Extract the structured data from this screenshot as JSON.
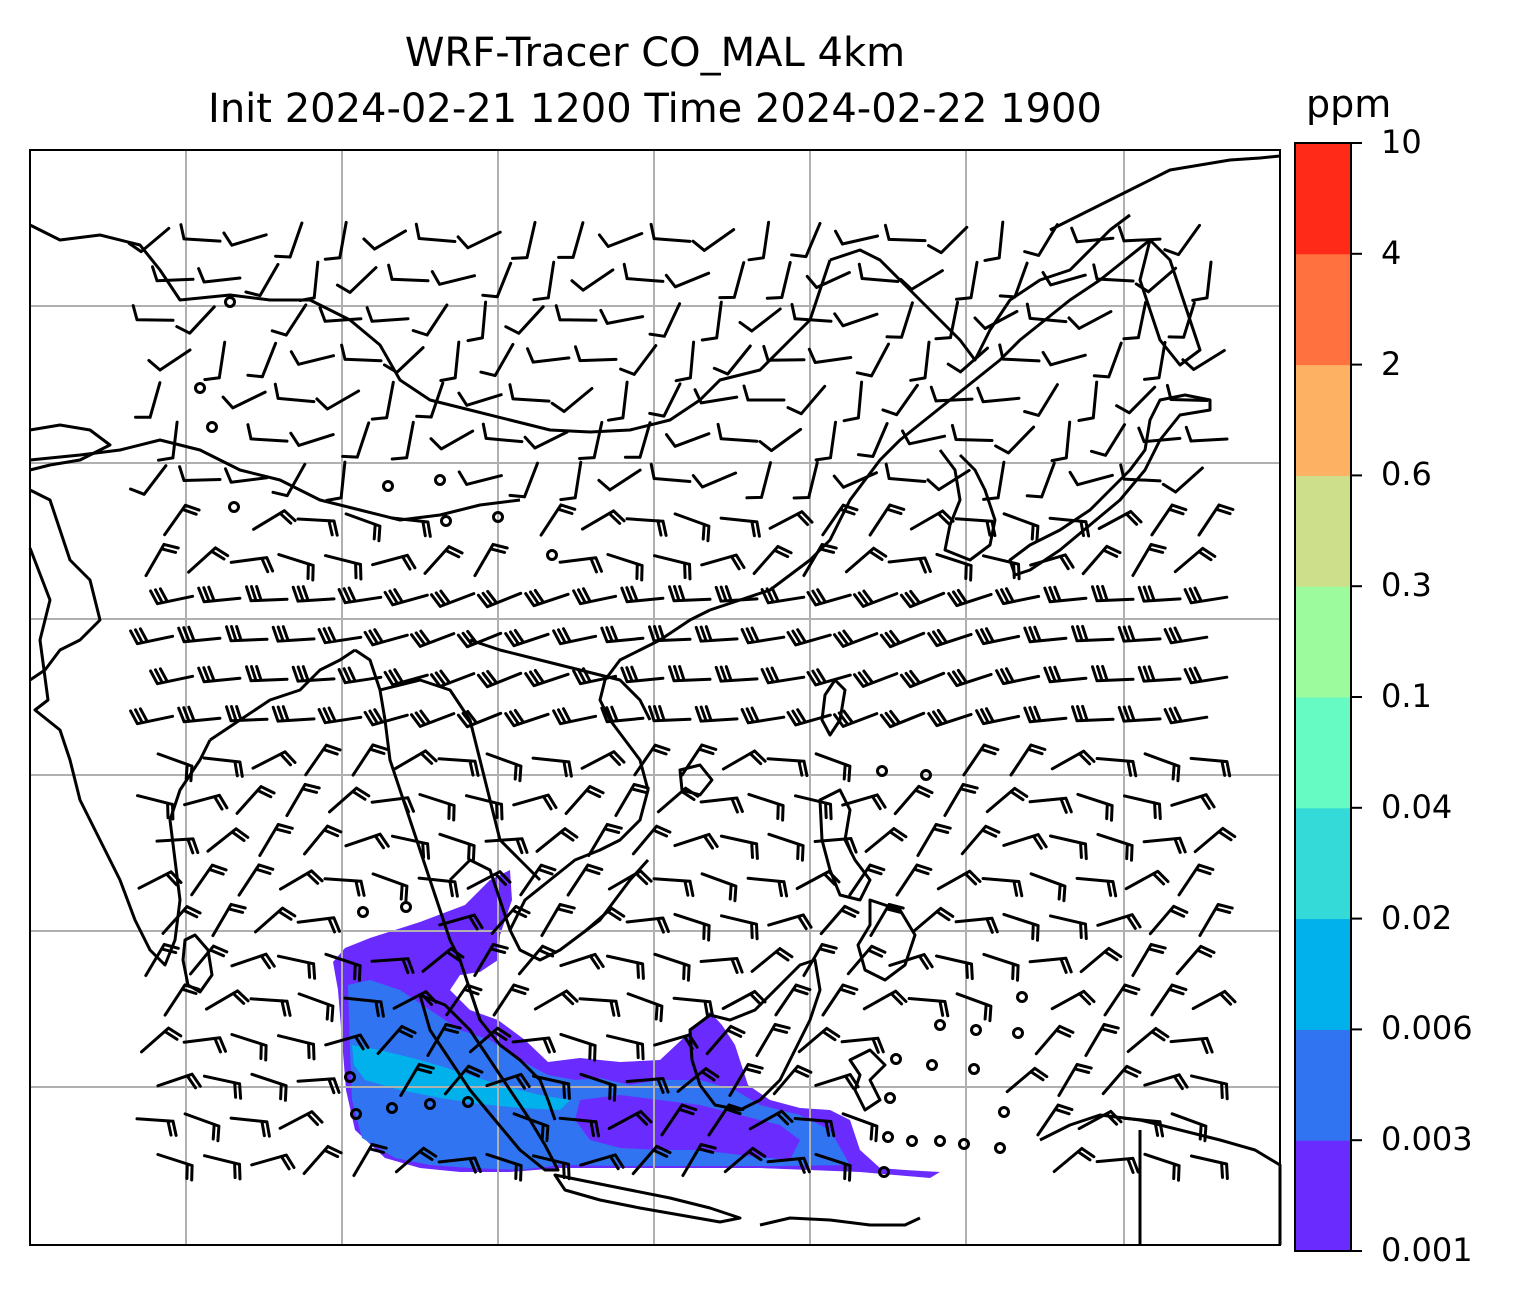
{
  "title": {
    "line1": "WRF-Tracer CO_MAL 4km",
    "line2": "Init 2024-02-21 1200 Time 2024-02-22 1900"
  },
  "colorbar": {
    "unit": "ppm",
    "ticks": [
      "0.001",
      "0.003",
      "0.006",
      "0.02",
      "0.04",
      "0.1",
      "0.3",
      "0.6",
      "2",
      "4",
      "10"
    ],
    "colors": [
      "#6a2bff",
      "#3174f2",
      "#00b1ec",
      "#34dad7",
      "#66fbc2",
      "#9cfb9c",
      "#cddf8a",
      "#fdb163",
      "#ff7240",
      "#ff2a17"
    ]
  },
  "map": {
    "frame_color": "#000000",
    "gridline_color": "#b0b0b0",
    "coastline_color": "#000000",
    "wind_barb_color": "#000000"
  }
}
